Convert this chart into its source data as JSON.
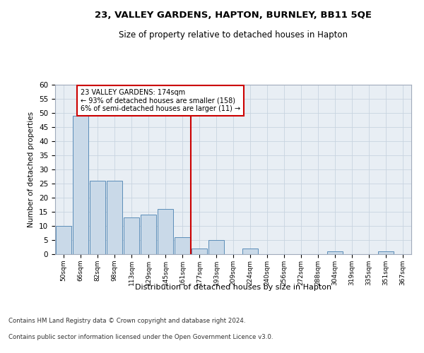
{
  "title": "23, VALLEY GARDENS, HAPTON, BURNLEY, BB11 5QE",
  "subtitle": "Size of property relative to detached houses in Hapton",
  "xlabel": "Distribution of detached houses by size in Hapton",
  "ylabel": "Number of detached properties",
  "bar_labels": [
    "50sqm",
    "66sqm",
    "82sqm",
    "98sqm",
    "113sqm",
    "129sqm",
    "145sqm",
    "161sqm",
    "177sqm",
    "193sqm",
    "209sqm",
    "224sqm",
    "240sqm",
    "256sqm",
    "272sqm",
    "288sqm",
    "304sqm",
    "319sqm",
    "335sqm",
    "351sqm",
    "367sqm"
  ],
  "bar_values": [
    10,
    49,
    26,
    26,
    13,
    14,
    16,
    6,
    2,
    5,
    0,
    2,
    0,
    0,
    0,
    0,
    1,
    0,
    0,
    1,
    0
  ],
  "bar_color": "#c9d9e8",
  "bar_edge_color": "#5b8db8",
  "property_line_x": 7.5,
  "property_line_label": "23 VALLEY GARDENS: 174sqm",
  "annotation_line1": "← 93% of detached houses are smaller (158)",
  "annotation_line2": "6% of semi-detached houses are larger (11) →",
  "annotation_box_color": "#ffffff",
  "annotation_box_edge": "#cc0000",
  "vline_color": "#cc0000",
  "ylim": [
    0,
    60
  ],
  "yticks": [
    0,
    5,
    10,
    15,
    20,
    25,
    30,
    35,
    40,
    45,
    50,
    55,
    60
  ],
  "grid_color": "#c8d4e0",
  "bg_color": "#e8eef4",
  "footer_line1": "Contains HM Land Registry data © Crown copyright and database right 2024.",
  "footer_line2": "Contains public sector information licensed under the Open Government Licence v3.0."
}
